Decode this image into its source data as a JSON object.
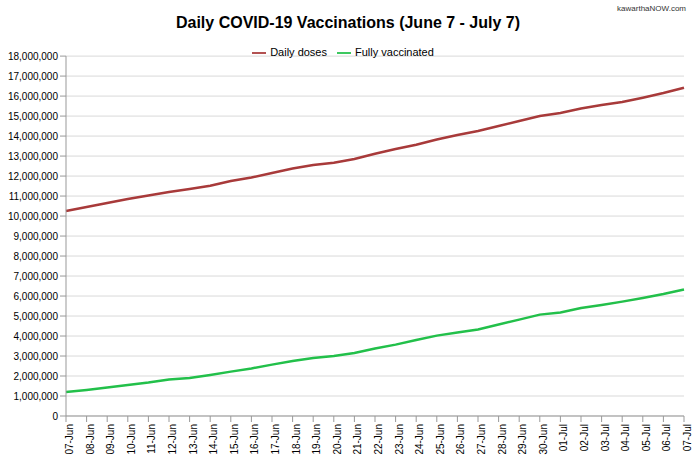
{
  "chart_data": {
    "type": "line",
    "title": "Daily COVID-19 Vaccinations (June 7 - July 7)",
    "annotations": [
      "kawarthaNOW.com"
    ],
    "categories": [
      "07-Jun",
      "08-Jun",
      "09-Jun",
      "10-Jun",
      "11-Jun",
      "12-Jun",
      "13-Jun",
      "14-Jun",
      "15-Jun",
      "16-Jun",
      "17-Jun",
      "18-Jun",
      "19-Jun",
      "20-Jun",
      "21-Jun",
      "22-Jun",
      "23-Jun",
      "24-Jun",
      "25-Jun",
      "26-Jun",
      "27-Jun",
      "28-Jun",
      "29-Jun",
      "30-Jun",
      "01-Jul",
      "02-Jul",
      "03-Jul",
      "04-Jul",
      "05-Jul",
      "06-Jul",
      "07-Jul"
    ],
    "series": [
      {
        "name": "Daily doses",
        "color": "#a83a3a",
        "values": [
          10250000,
          10450000,
          10650000,
          10850000,
          11030000,
          11200000,
          11350000,
          11520000,
          11750000,
          11930000,
          12150000,
          12380000,
          12550000,
          12670000,
          12850000,
          13120000,
          13350000,
          13570000,
          13830000,
          14050000,
          14250000,
          14500000,
          14750000,
          15000000,
          15150000,
          15380000,
          15550000,
          15700000,
          15920000,
          16150000,
          16420000
        ]
      },
      {
        "name": "Fully vaccinated",
        "color": "#22c04a",
        "values": [
          1200000,
          1300000,
          1420000,
          1550000,
          1670000,
          1820000,
          1900000,
          2050000,
          2220000,
          2380000,
          2570000,
          2750000,
          2900000,
          3000000,
          3150000,
          3380000,
          3570000,
          3800000,
          4020000,
          4180000,
          4330000,
          4580000,
          4820000,
          5070000,
          5180000,
          5400000,
          5550000,
          5720000,
          5900000,
          6100000,
          6330000
        ]
      }
    ],
    "ylim": [
      0,
      18000000
    ],
    "yticks": [
      0,
      {
        "value": 1000000,
        "label": "1,000,000"
      },
      {
        "value": 2000000,
        "label": "2,000,000"
      },
      {
        "value": 3000000,
        "label": "3,000,000"
      },
      {
        "value": 4000000,
        "label": "4,000,000"
      },
      {
        "value": 5000000,
        "label": "5,000,000"
      },
      {
        "value": 6000000,
        "label": "6,000,000"
      },
      {
        "value": 7000000,
        "label": "7,000,000"
      },
      {
        "value": 8000000,
        "label": "8,000,000"
      },
      {
        "value": 9000000,
        "label": "9,000,000"
      },
      {
        "value": 10000000,
        "label": "10,000,000"
      },
      {
        "value": 11000000,
        "label": "11,000,000"
      },
      {
        "value": 12000000,
        "label": "12,000,000"
      },
      {
        "value": 13000000,
        "label": "13,000,000"
      },
      {
        "value": 14000000,
        "label": "14,000,000"
      },
      {
        "value": 15000000,
        "label": "15,000,000"
      },
      {
        "value": 16000000,
        "label": "16,000,000"
      },
      {
        "value": 17000000,
        "label": "17,000,000"
      },
      {
        "value": 18000000,
        "label": "18,000,000"
      }
    ],
    "grid": true,
    "legend": "top"
  }
}
